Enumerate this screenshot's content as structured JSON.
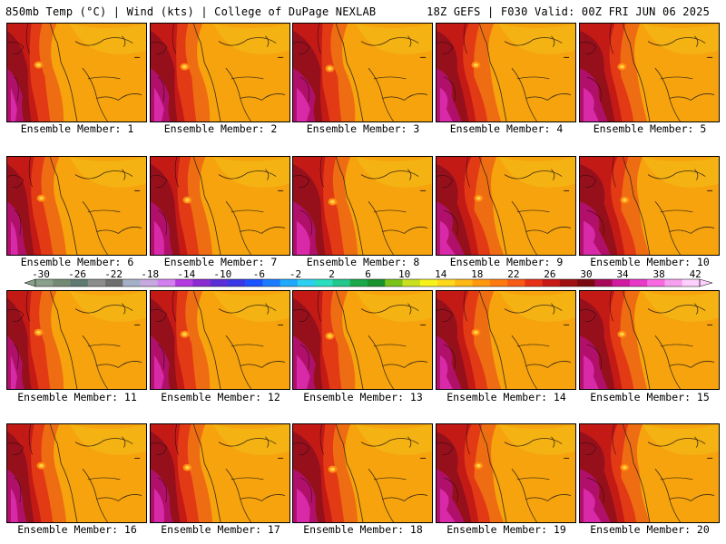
{
  "header": {
    "title_left": "850mb Temp (°C) | Wind (kts) | College of DuPage NEXLAB",
    "title_right": "18Z GEFS | F030 Valid: 00Z FRI JUN 06 2025"
  },
  "members": [
    {
      "label": "Ensemble Member: 1"
    },
    {
      "label": "Ensemble Member: 2"
    },
    {
      "label": "Ensemble Member: 3"
    },
    {
      "label": "Ensemble Member: 4"
    },
    {
      "label": "Ensemble Member: 5"
    },
    {
      "label": "Ensemble Member: 6"
    },
    {
      "label": "Ensemble Member: 7"
    },
    {
      "label": "Ensemble Member: 8"
    },
    {
      "label": "Ensemble Member: 9"
    },
    {
      "label": "Ensemble Member: 10"
    },
    {
      "label": "Ensemble Member: 11"
    },
    {
      "label": "Ensemble Member: 12"
    },
    {
      "label": "Ensemble Member: 13"
    },
    {
      "label": "Ensemble Member: 14"
    },
    {
      "label": "Ensemble Member: 15"
    },
    {
      "label": "Ensemble Member: 16"
    },
    {
      "label": "Ensemble Member: 17"
    },
    {
      "label": "Ensemble Member: 18"
    },
    {
      "label": "Ensemble Member: 19"
    },
    {
      "label": "Ensemble Member: 20"
    }
  ],
  "colorbar": {
    "labels": [
      "-30",
      "-26",
      "-22",
      "-18",
      "-14",
      "-10",
      "-6",
      "-2",
      "2",
      "6",
      "10",
      "14",
      "18",
      "22",
      "26",
      "30",
      "34",
      "38",
      "42"
    ],
    "colors": [
      "#8aa08a",
      "#758a75",
      "#5f7a72",
      "#8c8c8c",
      "#6e6e6e",
      "#a3b0c8",
      "#c8a8e0",
      "#d27ff0",
      "#b23ae0",
      "#8a2ad0",
      "#5b2fd8",
      "#3a38e6",
      "#1a52ff",
      "#1c7cff",
      "#20a8ff",
      "#2cd0f0",
      "#28e0c0",
      "#22c88c",
      "#1aa84a",
      "#1a9230",
      "#7ac41a",
      "#c8e020",
      "#f6f21c",
      "#ffd71c",
      "#ffb814",
      "#ff9a10",
      "#ff7a10",
      "#f85a18",
      "#e83018",
      "#c81818",
      "#a01010",
      "#7a0a10",
      "#a80a5a",
      "#d01aa0",
      "#e838c8",
      "#f868e0",
      "#f8a0f0",
      "#ffd0ff"
    ]
  }
}
